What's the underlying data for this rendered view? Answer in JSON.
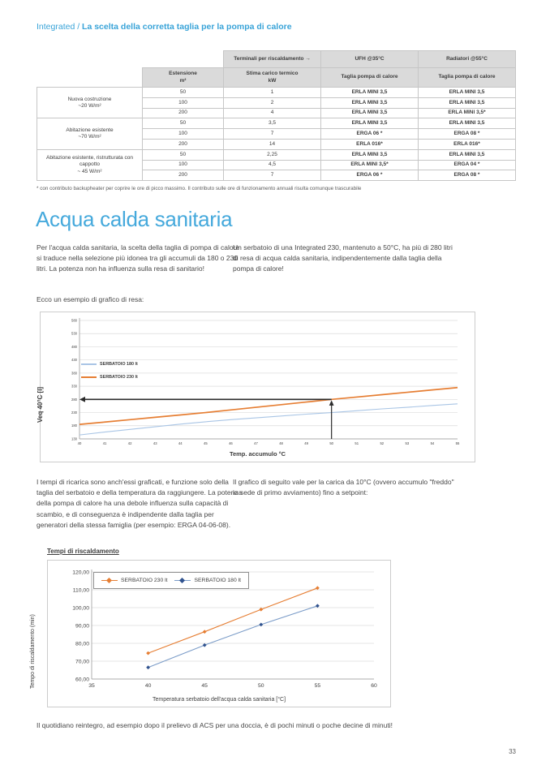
{
  "page": {
    "breadcrumb_prefix": "Integrated / ",
    "breadcrumb_title": "La scelta della corretta taglia per la pompa di calore",
    "page_number": "33"
  },
  "table": {
    "h1_terminali": "Terminali per riscaldamento →",
    "h1_ufh": "UFH @35°C",
    "h1_radiatori": "Radiatori @55°C",
    "h2_estensione_l1": "Estensione",
    "h2_estensione_l2": "m²",
    "h2_carico_l1": "Stima carico termico",
    "h2_carico_l2": "kW",
    "h2_taglia_ufh": "Taglia pompa di calore",
    "h2_taglia_rad": "Taglia pompa di calore",
    "groups": [
      {
        "label": "Nuova costruzione",
        "sublabel": "~20 W/m²",
        "rows": [
          [
            "50",
            "1",
            "ERLA MINI 3,5",
            "ERLA MINI 3,5"
          ],
          [
            "100",
            "2",
            "ERLA MINI 3,5",
            "ERLA MINI 3,5"
          ],
          [
            "200",
            "4",
            "ERLA MINI 3,5",
            "ERLA MINI 3,5*"
          ]
        ]
      },
      {
        "label": "Abitazione esistente",
        "sublabel": "~70 W/m²",
        "rows": [
          [
            "50",
            "3,5",
            "ERLA MINI 3,5",
            "ERLA MINI 3,5"
          ],
          [
            "100",
            "7",
            "ERGA 06 *",
            "ERGA 08 *"
          ],
          [
            "200",
            "14",
            "ERLA 016*",
            "ERLA 016*"
          ]
        ]
      },
      {
        "label": "Abitazione esistente, ristrutturata con cappotto",
        "sublabel": "~ 45 W/m²",
        "rows": [
          [
            "50",
            "2,25",
            "ERLA MINI 3,5",
            "ERLA MINI 3,5"
          ],
          [
            "100",
            "4,5",
            "ERLA MINI 3,5*",
            "ERGA 04 *"
          ],
          [
            "200",
            "7",
            "ERGA 06 *",
            "ERGA 08 *"
          ]
        ]
      }
    ],
    "footnote": "* con contributo backupheater per coprire le ore di picco massimo. Il contributo sulle ore di funzionamento annuali risulta comunque trascurabile"
  },
  "section": {
    "title": "Acqua calda sanitaria",
    "p_left_1": "Per l'acqua calda sanitaria, la scelta della taglia di pompa di calore si traduce nella selezione più idonea tra gli accumuli da 180 o 230 litri. La potenza non ha influenza sulla resa di sanitario!",
    "p_right_1": "Un serbatoio di una Integrated 230, mantenuto a 50°C, ha più di 280 litri di resa di acqua calda sanitaria, indipendentemente dalla taglia della pompa di calore!",
    "chart1_intro": "Ecco un esempio di grafico di resa:",
    "p_left_2": "I tempi di ricarica sono anch'essi graficati, e funzione solo della taglia del serbatoio e della temperatura da raggiungere. La potenza della pompa di calore ha una debole influenza sulla capacità di scambio, e di conseguenza è indipendente dalla taglia per generatori della stessa famiglia (per esempio: ERGA 04-06-08).",
    "p_right_2": "Il grafico di seguito vale per la carica da 10°C (ovvero accumulo \"freddo\" in sede di primo avviamento) fino a setpoint:",
    "chart2_heading": "Tempi di riscaldamento",
    "closing": "Il quotidiano reintegro, ad esempio dopo il prelievo di ACS per una doccia, è di pochi minuti o poche decine di minuti!"
  },
  "chart_data": [
    {
      "type": "line",
      "title": "",
      "xlabel": "Temp. accumulo °C",
      "ylabel": "Veq 40°C [l]",
      "xlim": [
        40,
        55
      ],
      "ylim": [
        130,
        580
      ],
      "grid": true,
      "legend_position": "upper-left",
      "xticks": [
        40,
        41,
        42,
        43,
        44,
        45,
        46,
        47,
        48,
        49,
        50,
        51,
        52,
        53,
        54,
        55
      ],
      "yticks": [
        130,
        180,
        230,
        280,
        330,
        380,
        430,
        480,
        530,
        580
      ],
      "ytick_labels": [
        "130",
        "180",
        "230",
        "280",
        "330",
        "380",
        "430",
        "480",
        "530",
        "580"
      ],
      "x": [
        40,
        41,
        42,
        43,
        44,
        45,
        46,
        47,
        48,
        49,
        50,
        51,
        52,
        53,
        54,
        55
      ],
      "series": [
        {
          "name": "SERBATOIO 180 lt",
          "color": "#a9c5e5",
          "width": 1.1,
          "values": [
            145,
            156,
            166,
            176,
            186,
            195,
            203,
            210,
            217,
            224,
            230,
            237,
            244,
            250,
            257,
            263
          ]
        },
        {
          "name": "SERBATOIO 230 lt",
          "color": "#e67e33",
          "width": 1.7,
          "values": [
            185,
            194,
            203,
            212,
            221,
            230,
            240,
            250,
            260,
            270,
            280,
            289,
            298,
            307,
            316,
            325
          ]
        }
      ],
      "annotation": {
        "type": "crosshair-arrows",
        "target_x": 50,
        "target_y": 280
      }
    },
    {
      "type": "line",
      "title": "",
      "xlabel": "Temperatura serbatoio dell'acqua calda sanitaria [°C]",
      "ylabel": "Tempo di riscaldamento (min)",
      "xlim": [
        35,
        60
      ],
      "ylim": [
        60,
        120
      ],
      "grid": true,
      "legend_position": "top",
      "xticks": [
        35,
        40,
        45,
        50,
        55,
        60
      ],
      "yticks": [
        60,
        70,
        80,
        90,
        100,
        110,
        120
      ],
      "ytick_labels": [
        "60,00",
        "70,00",
        "80,00",
        "90,00",
        "100,00",
        "110,00",
        "120,00"
      ],
      "x": [
        40,
        45,
        50,
        55
      ],
      "series": [
        {
          "name": "SERBATOIO 230 lt",
          "color": "#e67e33",
          "marker": "diamond",
          "marker_color": "#e67e33",
          "width": 1.1,
          "values": [
            74.5,
            86.5,
            99,
            111
          ]
        },
        {
          "name": "SERBATOIO 180 lt",
          "color": "#7b9cc8",
          "marker": "diamond",
          "marker_color": "#31538f",
          "width": 1.1,
          "values": [
            66.5,
            79,
            90.5,
            101
          ]
        }
      ]
    }
  ]
}
